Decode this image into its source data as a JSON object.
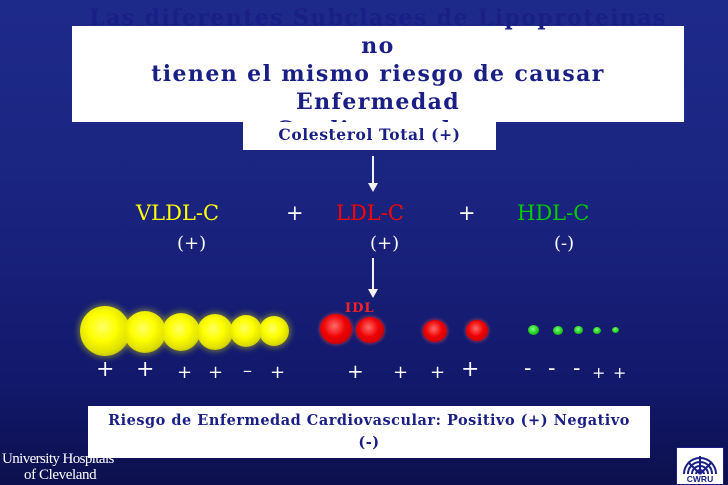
{
  "title": {
    "line1": "Las diferentes Subclases de Lipoproteinas no",
    "line2": "tienen el mismo riesgo de causar Enfermedad",
    "line3": "Cardiovascular"
  },
  "cholesterol_label": "Colesterol Total (+)",
  "fractions": {
    "vldl": {
      "label": "VLDL-C",
      "sign": "(+)",
      "color": "#ffff00"
    },
    "plus_1": "+",
    "ldl": {
      "label": "LDL-C",
      "sign": "(+)",
      "color": "#ff0000"
    },
    "plus_2": "+",
    "hdl": {
      "label": "HDL-C",
      "sign": "(-)",
      "color": "#00cc00"
    }
  },
  "idl_label": "IDL",
  "risk_signs": {
    "vldl": [
      "+",
      "+",
      "+",
      "+",
      "–",
      "+"
    ],
    "ldl": [
      "+",
      "+",
      "+",
      "+"
    ],
    "hdl": [
      "-",
      "-",
      "-",
      "+",
      "+"
    ]
  },
  "risk_note": "Riesgo de Enfermedad Cardiovascular: Positivo (+) Negativo (-)",
  "logos": {
    "hospital_line1": "University Hospitals",
    "hospital_line2": "of Cleveland",
    "cwru": "CWRU"
  }
}
